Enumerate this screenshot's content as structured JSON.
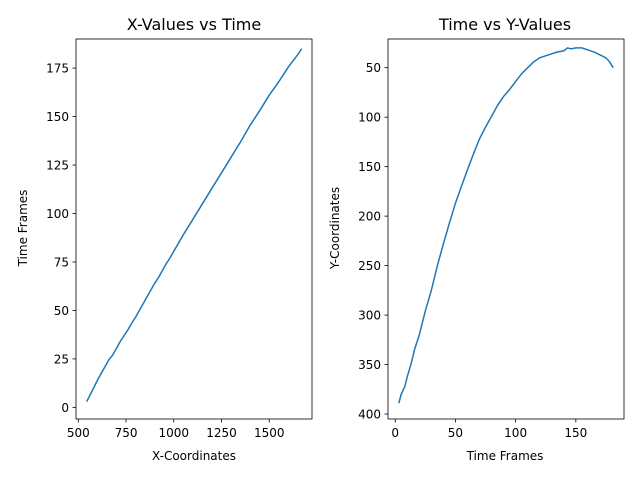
{
  "chart_data": [
    {
      "type": "line",
      "title": "X-Values vs Time",
      "xlabel": "X-Coordinates",
      "ylabel": "Time Frames",
      "xlim": [
        488,
        1724
      ],
      "ylim": [
        -6,
        190
      ],
      "xticks": [
        500,
        750,
        1000,
        1250,
        1500
      ],
      "yticks": [
        0,
        25,
        50,
        75,
        100,
        125,
        150,
        175
      ],
      "y_inverted": false,
      "grid": false,
      "line_color": "#1f77b4",
      "series": [
        {
          "x": [
            544,
            560,
            580,
            600,
            620,
            640,
            660,
            680,
            700,
            720,
            740,
            760,
            780,
            800,
            820,
            840,
            860,
            880,
            900,
            920,
            940,
            960,
            980,
            1000,
            1050,
            1100,
            1150,
            1200,
            1250,
            1300,
            1350,
            1400,
            1450,
            1500,
            1550,
            1600,
            1650,
            1670
          ],
          "y": [
            3,
            6,
            10,
            14,
            17.5,
            21,
            24.5,
            27,
            30.5,
            34,
            37,
            40,
            43.5,
            46.5,
            50,
            53.5,
            57,
            60.5,
            64,
            67,
            70.5,
            74,
            77,
            80.5,
            89,
            97,
            105,
            113,
            121,
            129,
            137,
            145.5,
            153,
            161,
            168,
            175.5,
            182,
            185
          ]
        }
      ]
    },
    {
      "type": "line",
      "title": "Time vs Y-Values",
      "xlabel": "Time Frames",
      "ylabel": "Y-Coordinates",
      "xlim": [
        -6,
        190
      ],
      "ylim": [
        405,
        21
      ],
      "xticks": [
        0,
        50,
        100,
        150
      ],
      "yticks": [
        50,
        100,
        150,
        200,
        250,
        300,
        350,
        400
      ],
      "y_inverted": true,
      "grid": false,
      "line_color": "#1f77b4",
      "series": [
        {
          "x": [
            3,
            5,
            8,
            10,
            13,
            16,
            20,
            25,
            30,
            35,
            40,
            45,
            50,
            55,
            60,
            65,
            70,
            75,
            80,
            85,
            90,
            95,
            100,
            105,
            110,
            115,
            120,
            125,
            130,
            135,
            140,
            143,
            146,
            150,
            155,
            160,
            165,
            170,
            175,
            178,
            181
          ],
          "y": [
            389,
            380,
            372,
            362,
            350,
            335,
            320,
            296,
            275,
            250,
            228,
            207,
            187,
            170,
            153,
            137,
            122,
            110,
            99,
            88,
            79,
            72,
            64,
            56,
            50,
            44,
            40,
            38,
            36,
            34,
            33,
            30,
            31,
            30,
            30,
            32,
            34,
            37,
            40,
            44,
            50
          ]
        }
      ]
    }
  ]
}
